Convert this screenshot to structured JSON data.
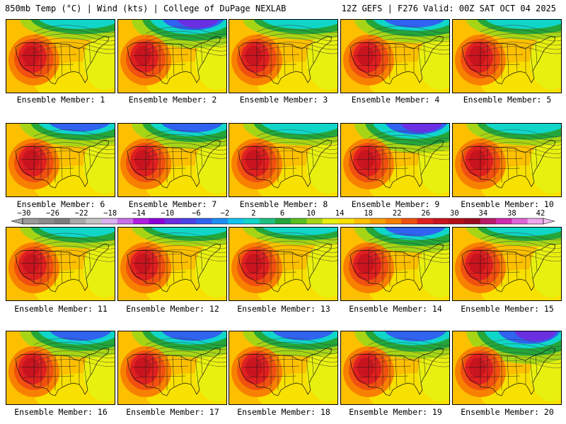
{
  "header": {
    "left": "850mb Temp (°C) | Wind (kts) | College of DuPage NEXLAB",
    "right": "12Z GEFS | F276 Valid: 00Z SAT OCT 04 2025"
  },
  "caption_prefix": "Ensemble Member:",
  "members": [
    "1",
    "2",
    "3",
    "4",
    "5",
    "6",
    "7",
    "8",
    "9",
    "10",
    "11",
    "12",
    "13",
    "14",
    "15",
    "16",
    "17",
    "18",
    "19",
    "20"
  ],
  "member_cold": [
    0.3,
    0.7,
    0.3,
    0.45,
    0.3,
    0.45,
    0.55,
    0.4,
    0.75,
    0.4,
    0.35,
    0.25,
    0.2,
    0.55,
    0.25,
    0.6,
    0.6,
    0.55,
    0.65,
    0.9
  ],
  "colorbar": {
    "ticks": [
      "-30",
      "-26",
      "-22",
      "-18",
      "-14",
      "-10",
      "-6",
      "-2",
      "2",
      "6",
      "10",
      "14",
      "18",
      "22",
      "26",
      "30",
      "34",
      "38",
      "42"
    ],
    "colors": [
      "#9a9a9a",
      "#8c8c8c",
      "#7d7d7d",
      "#a9a9a9",
      "#c4c4c4",
      "#d9b2ef",
      "#c870e8",
      "#b01ee0",
      "#8b00d9",
      "#6a2fe0",
      "#4b42e8",
      "#2f63f0",
      "#1e8ef5",
      "#12c4f0",
      "#10d6c9",
      "#20c080",
      "#24a63a",
      "#58c020",
      "#a6d516",
      "#e8f010",
      "#f8e000",
      "#fcc000",
      "#fca000",
      "#f88000",
      "#f05010",
      "#e02020",
      "#c8141e",
      "#b4101a",
      "#9a0c1e",
      "#bb1a6a",
      "#d02ab0",
      "#e066d8",
      "#f0a6ee"
    ]
  }
}
